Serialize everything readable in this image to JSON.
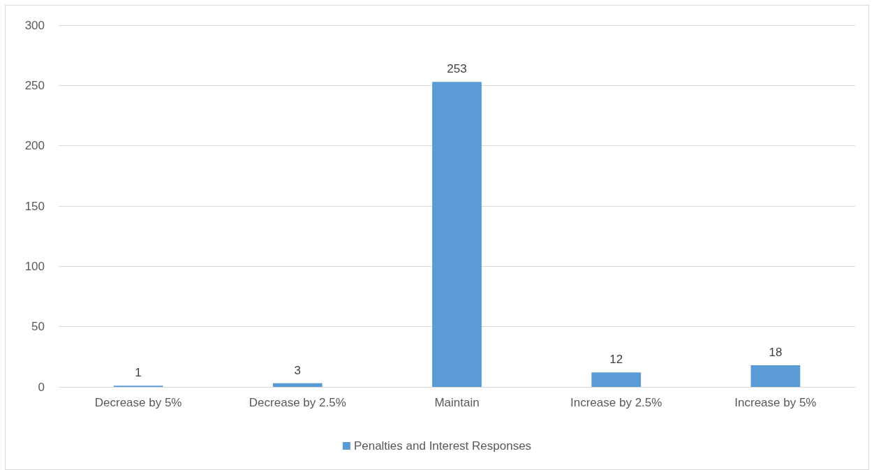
{
  "chart_data": {
    "type": "bar",
    "categories": [
      "Decrease by 5%",
      "Decrease by 2.5%",
      "Maintain",
      "Increase by 2.5%",
      "Increase by 5%"
    ],
    "series": [
      {
        "name": "Penalties and Interest Responses",
        "color": "#5b9bd5",
        "values": [
          1,
          3,
          253,
          12,
          18
        ]
      }
    ],
    "ylim": [
      0,
      300
    ],
    "yticks": [
      0,
      50,
      100,
      150,
      200,
      250,
      300
    ],
    "grid": "y",
    "legend": "bottom",
    "data_labels": true
  }
}
